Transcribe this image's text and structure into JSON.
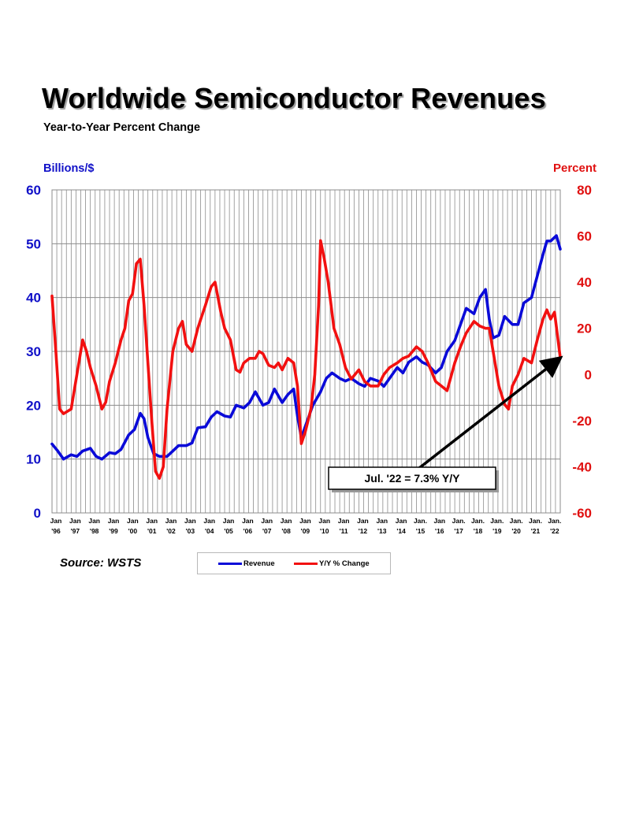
{
  "title": "Worldwide Semiconductor Revenues",
  "subtitle": "Year-to-Year Percent Change",
  "source": "Source: WSTS",
  "legend": {
    "revenue_label": "Revenue",
    "yy_label": "Y/Y % Change"
  },
  "colors": {
    "revenue": "#0a0ad8",
    "yy": "#f21010",
    "grid": "#8c8c8c"
  },
  "chart_data": {
    "type": "line",
    "title": "Worldwide Semiconductor Revenues",
    "left_axis": {
      "label": "Billions/$",
      "min": 0,
      "max": 60,
      "ticks": [
        "0",
        "10",
        "20",
        "30",
        "40",
        "50",
        "60"
      ]
    },
    "right_axis": {
      "label": "Percent",
      "min": -60,
      "max": 80,
      "ticks": [
        "-60",
        "-40",
        "-20",
        "0",
        "20",
        "40",
        "60",
        "80"
      ]
    },
    "x_range": [
      1996.0,
      2022.5
    ],
    "x_ticks": [
      {
        "x": 1996,
        "top": "Jan",
        "bottom": "'96"
      },
      {
        "x": 1997,
        "top": "Jan",
        "bottom": "'97"
      },
      {
        "x": 1998,
        "top": "Jan",
        "bottom": "'98"
      },
      {
        "x": 1999,
        "top": "Jan",
        "bottom": "'99"
      },
      {
        "x": 2000,
        "top": "Jan",
        "bottom": "'00"
      },
      {
        "x": 2001,
        "top": "Jan",
        "bottom": "'01"
      },
      {
        "x": 2002,
        "top": "Jan",
        "bottom": "'02"
      },
      {
        "x": 2003,
        "top": "Jan",
        "bottom": "'03"
      },
      {
        "x": 2004,
        "top": "Jan",
        "bottom": "'04"
      },
      {
        "x": 2005,
        "top": "Jan",
        "bottom": "'05"
      },
      {
        "x": 2006,
        "top": "Jan",
        "bottom": "'06"
      },
      {
        "x": 2007,
        "top": "Jan",
        "bottom": "'07"
      },
      {
        "x": 2008,
        "top": "Jan",
        "bottom": "'08"
      },
      {
        "x": 2009,
        "top": "Jan",
        "bottom": "'09"
      },
      {
        "x": 2010,
        "top": "Jan",
        "bottom": "'10"
      },
      {
        "x": 2011,
        "top": "Jan",
        "bottom": "'11"
      },
      {
        "x": 2012,
        "top": "Jan",
        "bottom": "'12"
      },
      {
        "x": 2013,
        "top": "Jan",
        "bottom": "'13"
      },
      {
        "x": 2014,
        "top": "Jan",
        "bottom": "'14"
      },
      {
        "x": 2015,
        "top": "Jan.",
        "bottom": "'15"
      },
      {
        "x": 2016,
        "top": "Jan",
        "bottom": "'16"
      },
      {
        "x": 2017,
        "top": "Jan.",
        "bottom": "'17"
      },
      {
        "x": 2018,
        "top": "Jan.",
        "bottom": "'18"
      },
      {
        "x": 2019,
        "top": "Jan.",
        "bottom": "'19"
      },
      {
        "x": 2020,
        "top": "Jan.",
        "bottom": "'20"
      },
      {
        "x": 2021,
        "top": "Jan.",
        "bottom": "'21"
      },
      {
        "x": 2022,
        "top": "Jan.",
        "bottom": "'22"
      }
    ],
    "series": [
      {
        "name": "Revenue",
        "axis": "left",
        "x": [
          1996.0,
          1996.3,
          1996.6,
          1997.0,
          1997.3,
          1997.6,
          1998.0,
          1998.3,
          1998.6,
          1999.0,
          1999.3,
          1999.6,
          2000.0,
          2000.3,
          2000.6,
          2000.8,
          2001.0,
          2001.3,
          2001.6,
          2002.0,
          2002.3,
          2002.6,
          2003.0,
          2003.3,
          2003.6,
          2004.0,
          2004.3,
          2004.6,
          2005.0,
          2005.3,
          2005.6,
          2006.0,
          2006.3,
          2006.6,
          2007.0,
          2007.3,
          2007.6,
          2008.0,
          2008.3,
          2008.6,
          2008.8,
          2009.0,
          2009.3,
          2009.6,
          2010.0,
          2010.3,
          2010.6,
          2011.0,
          2011.3,
          2011.6,
          2012.0,
          2012.3,
          2012.6,
          2013.0,
          2013.3,
          2013.6,
          2014.0,
          2014.3,
          2014.6,
          2015.0,
          2015.3,
          2015.6,
          2016.0,
          2016.3,
          2016.6,
          2017.0,
          2017.3,
          2017.6,
          2018.0,
          2018.3,
          2018.6,
          2018.8,
          2019.0,
          2019.3,
          2019.6,
          2020.0,
          2020.3,
          2020.6,
          2021.0,
          2021.3,
          2021.6,
          2021.8,
          2022.0,
          2022.3,
          2022.5
        ],
        "values": [
          12.8,
          11.5,
          10.0,
          10.8,
          10.5,
          11.5,
          12.0,
          10.5,
          10.0,
          11.2,
          11.0,
          11.8,
          14.5,
          15.5,
          18.5,
          17.5,
          14.0,
          11.0,
          10.5,
          10.5,
          11.5,
          12.5,
          12.5,
          13.0,
          15.8,
          16.0,
          17.8,
          18.8,
          18.0,
          17.8,
          20.0,
          19.5,
          20.5,
          22.5,
          20.0,
          20.5,
          23.0,
          20.5,
          22.0,
          23.0,
          18.0,
          14.0,
          17.0,
          20.0,
          22.5,
          25.0,
          26.0,
          25.0,
          24.5,
          25.0,
          24.0,
          23.5,
          25.0,
          24.5,
          23.5,
          25.0,
          27.0,
          26.0,
          28.0,
          29.0,
          28.0,
          27.5,
          26.0,
          27.0,
          30.0,
          32.0,
          35.0,
          38.0,
          37.0,
          40.0,
          41.5,
          36.0,
          32.5,
          33.0,
          36.5,
          35.0,
          35.0,
          39.0,
          40.0,
          44.0,
          48.0,
          50.5,
          50.5,
          51.5,
          49.0
        ]
      },
      {
        "name": "Y/Y % Change",
        "axis": "right",
        "x": [
          1996.0,
          1996.2,
          1996.4,
          1996.6,
          1996.8,
          1997.0,
          1997.3,
          1997.6,
          1997.8,
          1998.0,
          1998.3,
          1998.6,
          1998.8,
          1999.0,
          1999.3,
          1999.6,
          1999.8,
          2000.0,
          2000.2,
          2000.4,
          2000.6,
          2000.8,
          2001.0,
          2001.2,
          2001.4,
          2001.6,
          2001.8,
          2002.0,
          2002.3,
          2002.6,
          2002.8,
          2003.0,
          2003.3,
          2003.6,
          2003.8,
          2004.0,
          2004.3,
          2004.5,
          2004.8,
          2005.0,
          2005.3,
          2005.6,
          2005.8,
          2006.0,
          2006.3,
          2006.6,
          2006.8,
          2007.0,
          2007.3,
          2007.6,
          2007.8,
          2008.0,
          2008.3,
          2008.6,
          2008.8,
          2009.0,
          2009.2,
          2009.5,
          2009.7,
          2009.9,
          2010.0,
          2010.2,
          2010.4,
          2010.7,
          2011.0,
          2011.3,
          2011.6,
          2012.0,
          2012.3,
          2012.6,
          2013.0,
          2013.3,
          2013.6,
          2014.0,
          2014.3,
          2014.6,
          2015.0,
          2015.3,
          2015.6,
          2016.0,
          2016.3,
          2016.6,
          2017.0,
          2017.3,
          2017.6,
          2018.0,
          2018.3,
          2018.6,
          2018.8,
          2019.0,
          2019.3,
          2019.6,
          2019.8,
          2020.0,
          2020.3,
          2020.6,
          2021.0,
          2021.3,
          2021.6,
          2021.8,
          2022.0,
          2022.2,
          2022.5
        ],
        "values": [
          34,
          10,
          -15,
          -17,
          -16,
          -15,
          0,
          15,
          10,
          3,
          -5,
          -15,
          -12,
          -3,
          5,
          15,
          20,
          32,
          35,
          48,
          50,
          30,
          5,
          -20,
          -42,
          -45,
          -40,
          -15,
          10,
          20,
          23,
          13,
          10,
          20,
          25,
          30,
          38,
          40,
          27,
          20,
          15,
          2,
          1,
          5,
          7,
          7,
          10,
          9,
          4,
          3,
          5,
          2,
          7,
          5,
          -5,
          -30,
          -25,
          -15,
          0,
          30,
          58,
          50,
          40,
          20,
          13,
          3,
          -2,
          2,
          -3,
          -5,
          -5,
          0,
          3,
          5,
          7,
          8,
          12,
          10,
          5,
          -3,
          -5,
          -7,
          5,
          12,
          18,
          23,
          21,
          20,
          20,
          10,
          -5,
          -13,
          -15,
          -5,
          0,
          7,
          5,
          15,
          24,
          28,
          24,
          27,
          7.3
        ]
      }
    ],
    "annotation": {
      "text": "Jul. '22 = 7.3% Y/Y",
      "points_to": {
        "x": 2022.5,
        "y": 7.3,
        "axis": "right"
      }
    }
  }
}
